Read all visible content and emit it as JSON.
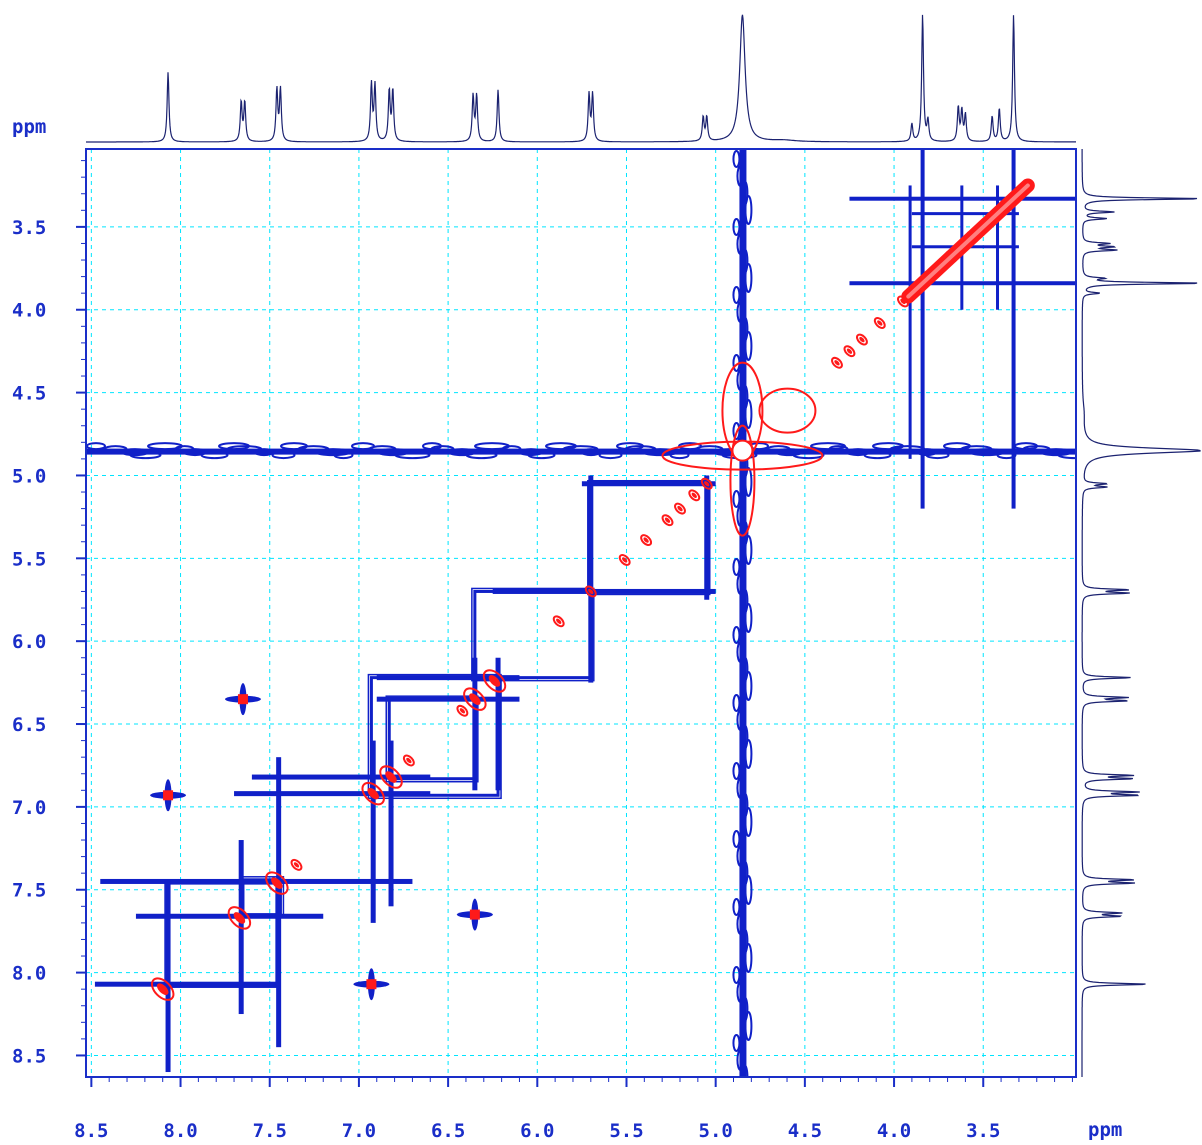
{
  "chart_data": {
    "type": "heatmap",
    "title": "",
    "xlabel": "ppm",
    "ylabel": "ppm",
    "xlim": [
      8.53,
      2.98
    ],
    "ylim": [
      3.03,
      8.63
    ],
    "x_ticks": [
      "8.5",
      "8.0",
      "7.5",
      "7.0",
      "6.5",
      "6.0",
      "5.5",
      "5.0",
      "4.5",
      "4.0",
      "3.5"
    ],
    "y_ticks": [
      "3.5",
      "4.0",
      "4.5",
      "5.0",
      "5.5",
      "6.0",
      "6.5",
      "7.0",
      "7.5",
      "8.0",
      "8.5"
    ],
    "grid": true,
    "colors": {
      "frame": "#1a2ec8",
      "grid": "#00e5ff",
      "negative_contour": "#1020c8",
      "positive_contour": "#ff1a1a",
      "projection": "#1b2270"
    },
    "projection_peaks_ppm": [
      {
        "ppm": 8.07,
        "intensity": 0.55
      },
      {
        "ppm": 7.66,
        "intensity": 0.31
      },
      {
        "ppm": 7.64,
        "intensity": 0.31
      },
      {
        "ppm": 7.46,
        "intensity": 0.41
      },
      {
        "ppm": 7.44,
        "intensity": 0.41
      },
      {
        "ppm": 6.93,
        "intensity": 0.45
      },
      {
        "ppm": 6.91,
        "intensity": 0.44
      },
      {
        "ppm": 6.83,
        "intensity": 0.4
      },
      {
        "ppm": 6.81,
        "intensity": 0.4
      },
      {
        "ppm": 6.36,
        "intensity": 0.36
      },
      {
        "ppm": 6.34,
        "intensity": 0.36
      },
      {
        "ppm": 6.22,
        "intensity": 0.41
      },
      {
        "ppm": 5.71,
        "intensity": 0.37
      },
      {
        "ppm": 5.69,
        "intensity": 0.37
      },
      {
        "ppm": 5.07,
        "intensity": 0.19
      },
      {
        "ppm": 5.05,
        "intensity": 0.19
      },
      {
        "ppm": 4.85,
        "intensity": 1.0
      },
      {
        "ppm": 3.9,
        "intensity": 0.14
      },
      {
        "ppm": 3.84,
        "intensity": 1.0
      },
      {
        "ppm": 3.81,
        "intensity": 0.16
      },
      {
        "ppm": 3.64,
        "intensity": 0.27
      },
      {
        "ppm": 3.62,
        "intensity": 0.24
      },
      {
        "ppm": 3.6,
        "intensity": 0.21
      },
      {
        "ppm": 3.45,
        "intensity": 0.2
      },
      {
        "ppm": 3.41,
        "intensity": 0.26
      },
      {
        "ppm": 3.33,
        "intensity": 1.0
      }
    ],
    "diagonal_peaks_ppm": [
      8.1,
      7.67,
      7.46,
      7.35,
      6.92,
      6.82,
      6.72,
      6.42,
      6.35,
      6.24,
      5.88,
      5.7,
      5.51,
      5.39,
      5.27,
      5.2,
      5.12,
      5.05,
      4.85,
      4.32,
      4.25,
      4.18,
      4.08,
      3.95,
      3.8,
      3.68,
      3.56,
      3.45,
      3.35
    ],
    "positive_cross_peaks_ppm": [
      {
        "x": 7.65,
        "y": 6.35
      },
      {
        "x": 6.35,
        "y": 7.65
      },
      {
        "x": 8.07,
        "y": 6.93
      },
      {
        "x": 6.93,
        "y": 8.07
      }
    ],
    "negative_band_lines_ppm": {
      "vertical": [
        4.85,
        3.84,
        3.33
      ],
      "horizontal": [
        4.85,
        3.84,
        3.33
      ]
    },
    "coupling_boxes_ppm": [
      {
        "x1": 8.07,
        "x2": 7.46,
        "y1": 7.46,
        "y2": 8.07
      },
      {
        "x1": 7.65,
        "x2": 7.44,
        "y1": 7.44,
        "y2": 7.65
      },
      {
        "x1": 6.93,
        "x2": 6.22,
        "y1": 6.22,
        "y2": 6.93
      },
      {
        "x1": 6.83,
        "x2": 6.35,
        "y1": 6.35,
        "y2": 6.83
      },
      {
        "x1": 5.7,
        "x2": 6.35,
        "y1": 5.7,
        "y2": 6.22
      },
      {
        "x1": 5.7,
        "x2": 5.05,
        "y1": 5.05,
        "y2": 5.7
      }
    ]
  }
}
